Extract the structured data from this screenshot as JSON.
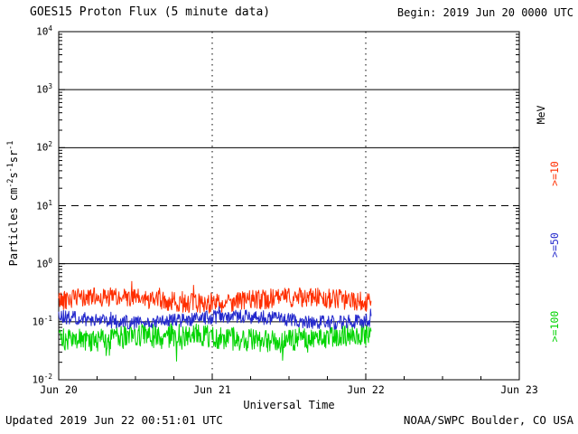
{
  "header": {
    "title": "GOES15 Proton Flux (5 minute data)",
    "begin": "Begin: 2019 Jun 20 0000 UTC"
  },
  "footer": {
    "updated": "Updated 2019 Jun 22 00:51:01 UTC",
    "credit": "NOAA/SWPC Boulder, CO USA"
  },
  "axes": {
    "x_label": "Universal Time",
    "x_ticks": [
      "Jun 20",
      "Jun 21",
      "Jun 22",
      "Jun 23"
    ],
    "y_exponents": [
      4,
      3,
      2,
      1,
      0,
      -1,
      -2
    ],
    "y_label": {
      "pre": "Particles cm",
      "sup1": "-2",
      "mid1": "s",
      "sup2": "-1",
      "mid2": "sr",
      "sup3": "-1"
    },
    "right_unit": "MeV"
  },
  "chart_data": {
    "type": "line",
    "title": "GOES15 Proton Flux (5 minute data)",
    "x_axis": {
      "label": "Universal Time",
      "start": "2019 Jun 20 0000 UTC",
      "end": "2019 Jun 23 0000 UTC",
      "tick_labels": [
        "Jun 20",
        "Jun 21",
        "Jun 22",
        "Jun 23"
      ],
      "span_days": 3
    },
    "y_axis": {
      "label": "Particles cm-2 s-1 sr-1",
      "scale": "log",
      "min": 0.01,
      "max": 10000
    },
    "hlines": [
      {
        "value": 1000,
        "style": "solid"
      },
      {
        "value": 100,
        "style": "solid"
      },
      {
        "value": 10,
        "style": "dashed"
      },
      {
        "value": 1,
        "style": "solid"
      },
      {
        "value": 0.1,
        "style": "solid"
      }
    ],
    "vlines_days": [
      1,
      2
    ],
    "data_end_day": 2.0354,
    "sample_interval_minutes": 5,
    "seed": 42,
    "series": [
      {
        "name": ">=10 MeV",
        "label": ">=10",
        "color": "#ff2e00",
        "approx_mean_flux": 0.24,
        "approx_range_flux": [
          0.13,
          0.45
        ],
        "approx_log10_mean": -0.63,
        "approx_log10_noise": 0.17,
        "spike_prob": 0.04,
        "spike_log10": 0.14
      },
      {
        "name": ">=50 MeV",
        "label": ">=50",
        "color": "#2328cc",
        "approx_mean_flux": 0.11,
        "approx_range_flux": [
          0.07,
          0.16
        ],
        "approx_log10_mean": -0.96,
        "approx_log10_noise": 0.12,
        "spike_prob": 0.03,
        "spike_log10": 0.1
      },
      {
        "name": ">=100 MeV",
        "label": ">=100",
        "color": "#00d400",
        "approx_mean_flux": 0.05,
        "approx_range_flux": [
          0.025,
          0.09
        ],
        "approx_log10_mean": -1.27,
        "approx_log10_noise": 0.2,
        "spike_prob": 0.06,
        "spike_log10": -0.2
      }
    ]
  }
}
